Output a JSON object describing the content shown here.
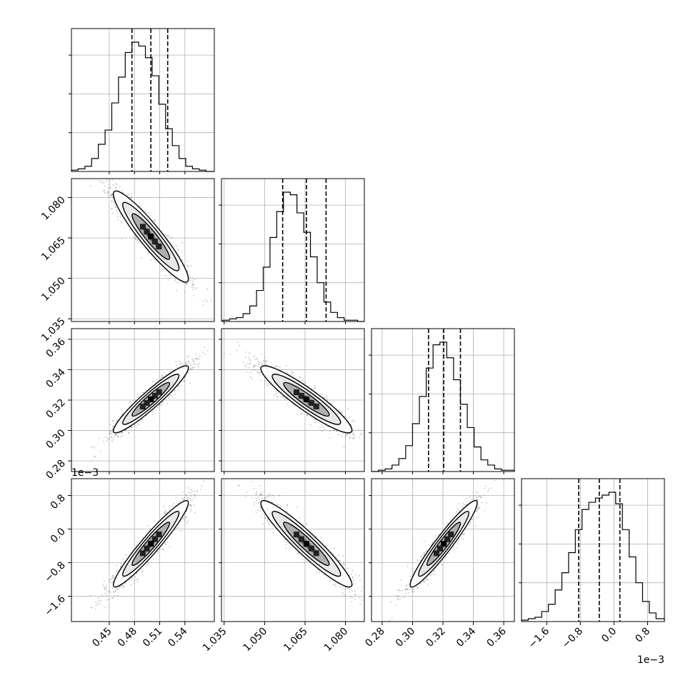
{
  "chart_data": {
    "type": "corner",
    "title": "",
    "parameters": [
      "",
      "",
      "",
      ""
    ],
    "ranges": [
      [
        0.405,
        0.575
      ],
      [
        1.034,
        1.087
      ],
      [
        0.273,
        0.367
      ],
      [
        -0.0022,
        0.0012
      ]
    ],
    "ticks": [
      {
        "values": [
          0.45,
          0.48,
          0.51,
          0.54
        ],
        "labels": [
          "0.45",
          "0.48",
          "0.51",
          "0.54"
        ]
      },
      {
        "values": [
          1.035,
          1.05,
          1.065,
          1.08
        ],
        "labels": [
          "1.035",
          "1.050",
          "1.065",
          "1.080"
        ]
      },
      {
        "values": [
          0.28,
          0.3,
          0.32,
          0.34,
          0.36
        ],
        "labels": [
          "0.28",
          "0.30",
          "0.32",
          "0.34",
          "0.36"
        ]
      },
      {
        "values": [
          -0.0016,
          -0.0008,
          0.0,
          0.0008
        ],
        "labels": [
          "−1.6",
          "−0.8",
          "0.0",
          "0.8"
        ]
      }
    ],
    "offset_text": "1e−3",
    "grid": true,
    "quantiles": [
      0.16,
      0.5,
      0.84
    ],
    "quantile_values": [
      [
        0.477,
        0.4995,
        0.5195
      ],
      [
        1.0567,
        1.0655,
        1.0728
      ],
      [
        0.3105,
        0.3205,
        0.3315
      ],
      [
        -0.00084,
        -0.00035,
        0.00014
      ]
    ],
    "histograms": [
      {
        "bins": [
          0.405,
          0.413,
          0.421,
          0.429,
          0.437,
          0.445,
          0.453,
          0.461,
          0.469,
          0.477,
          0.485,
          0.493,
          0.501,
          0.509,
          0.517,
          0.525,
          0.533,
          0.541,
          0.549,
          0.557,
          0.565,
          0.575
        ],
        "counts": [
          1,
          2,
          4,
          10,
          21,
          32,
          53,
          73,
          92,
          100,
          97,
          88,
          74,
          52,
          33,
          20,
          10,
          4,
          2,
          1,
          0
        ]
      },
      {
        "bins": [
          1.0345,
          1.037,
          1.0395,
          1.042,
          1.0445,
          1.047,
          1.0495,
          1.052,
          1.0545,
          1.057,
          1.0595,
          1.062,
          1.0645,
          1.067,
          1.0695,
          1.072,
          1.0745,
          1.077,
          1.0795,
          1.082,
          1.0845,
          1.087
        ],
        "counts": [
          1,
          2,
          3,
          6,
          12,
          24,
          42,
          65,
          85,
          100,
          98,
          84,
          69,
          50,
          30,
          15,
          7,
          3,
          1,
          1,
          0
        ]
      },
      {
        "bins": [
          0.273,
          0.2775,
          0.282,
          0.2865,
          0.291,
          0.2955,
          0.3,
          0.3045,
          0.309,
          0.3135,
          0.318,
          0.3225,
          0.327,
          0.3315,
          0.336,
          0.3405,
          0.345,
          0.3495,
          0.354,
          0.3585,
          0.363,
          0.367
        ],
        "counts": [
          0,
          1,
          2,
          5,
          10,
          20,
          37,
          58,
          80,
          98,
          100,
          88,
          71,
          52,
          34,
          19,
          9,
          5,
          2,
          1,
          1
        ]
      },
      {
        "bins": [
          -0.0022,
          -0.00204,
          -0.00188,
          -0.00172,
          -0.00156,
          -0.0014,
          -0.00124,
          -0.00108,
          -0.00092,
          -0.00076,
          -0.0006,
          -0.00044,
          -0.00028,
          -0.00012,
          4e-05,
          0.0002,
          0.00036,
          0.00052,
          0.00068,
          0.00084,
          0.001,
          0.0012
        ],
        "counts": [
          1,
          2,
          3,
          7,
          12,
          22,
          34,
          48,
          64,
          78,
          83,
          86,
          88,
          90,
          82,
          64,
          45,
          27,
          14,
          6,
          2
        ]
      }
    ],
    "correlation": {
      "0-1": -0.93,
      "0-2": 0.94,
      "0-3": 0.95,
      "1-2": -0.92,
      "1-3": -0.94,
      "2-3": 0.95
    },
    "contour_levels": [
      0.118,
      0.393,
      0.675,
      0.865
    ],
    "colors": {
      "line": "#000000",
      "grid": "#b0b0b0",
      "points": "#555555",
      "fill_dark": "#000000"
    }
  }
}
